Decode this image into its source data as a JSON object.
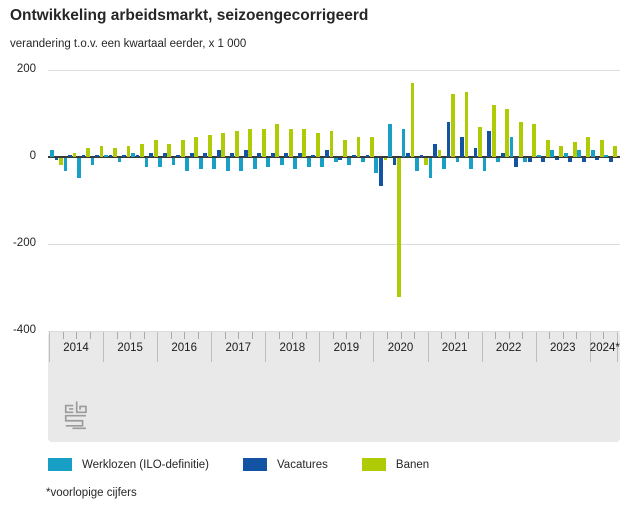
{
  "title": "Ontwikkeling arbeidsmarkt, seizoengecorrigeerd",
  "subtitle": "verandering t.o.v. een kwartaal eerder, x 1 000",
  "footnote": "*voorlopige cijfers",
  "colors": {
    "werklozen": "#189fc6",
    "vacatures": "#1353a4",
    "banen": "#afcb05",
    "zero_line": "#3a3a3a",
    "gridline": "#dcdcdc",
    "axis_band": "#e9e9e9",
    "text": "#262626"
  },
  "chart_data": {
    "type": "bar",
    "title": "Ontwikkeling arbeidsmarkt, seizoengecorrigeerd",
    "subtitle": "verandering t.o.v. een kwartaal eerder, x 1 000",
    "xlabel": "",
    "ylabel": "verandering t.o.v. een kwartaal eerder, x 1 000",
    "ylim": [
      -400,
      200
    ],
    "yticks": [
      200,
      0,
      -200,
      -400
    ],
    "ytick_labels": [
      "200",
      "0",
      "-200",
      "-400"
    ],
    "grid": true,
    "legend_position": "bottom",
    "years": [
      "2014",
      "2015",
      "2016",
      "2017",
      "2018",
      "2019",
      "2020",
      "2021",
      "2022",
      "2023",
      "2024*"
    ],
    "quarters_per_year": [
      4,
      4,
      4,
      4,
      4,
      4,
      4,
      4,
      4,
      4,
      2
    ],
    "quarters": [
      "2014 Q1",
      "2014 Q2",
      "2014 Q3",
      "2014 Q4",
      "2015 Q1",
      "2015 Q2",
      "2015 Q3",
      "2015 Q4",
      "2016 Q1",
      "2016 Q2",
      "2016 Q3",
      "2016 Q4",
      "2017 Q1",
      "2017 Q2",
      "2017 Q3",
      "2017 Q4",
      "2018 Q1",
      "2018 Q2",
      "2018 Q3",
      "2018 Q4",
      "2019 Q1",
      "2019 Q2",
      "2019 Q3",
      "2019 Q4",
      "2020 Q1",
      "2020 Q2",
      "2020 Q3",
      "2020 Q4",
      "2021 Q1",
      "2021 Q2",
      "2021 Q3",
      "2021 Q4",
      "2022 Q1",
      "2022 Q2",
      "2022 Q3",
      "2022 Q4",
      "2023 Q1",
      "2023 Q2",
      "2023 Q3",
      "2023 Q4",
      "2024 Q1",
      "2024 Q2"
    ],
    "series": [
      {
        "key": "werklozen",
        "name": "Werklozen (ILO-definitie)",
        "color": "#189fc6",
        "values": [
          15,
          -30,
          -45,
          -15,
          5,
          -10,
          10,
          -20,
          -20,
          -15,
          -30,
          -25,
          -25,
          -30,
          -30,
          -25,
          -20,
          -15,
          -25,
          -20,
          -20,
          -10,
          -15,
          -10,
          -35,
          75,
          65,
          -30,
          -45,
          -25,
          -10,
          -25,
          -30,
          -10,
          45,
          -10,
          5,
          15,
          10,
          15,
          15,
          5
        ]
      },
      {
        "key": "vacatures",
        "name": "Vacatures",
        "color": "#1353a4",
        "values": [
          -5,
          5,
          5,
          5,
          5,
          5,
          5,
          10,
          10,
          5,
          10,
          10,
          15,
          10,
          15,
          10,
          10,
          10,
          10,
          5,
          15,
          -5,
          5,
          5,
          -65,
          -15,
          10,
          5,
          30,
          80,
          45,
          20,
          60,
          10,
          -20,
          -10,
          -10,
          -5,
          -10,
          -10,
          -5,
          -10
        ]
      },
      {
        "key": "banen",
        "name": "Banen",
        "color": "#afcb05",
        "values": [
          -15,
          10,
          20,
          25,
          20,
          25,
          30,
          40,
          30,
          40,
          45,
          50,
          55,
          60,
          65,
          65,
          75,
          65,
          65,
          55,
          60,
          40,
          45,
          45,
          -5,
          -320,
          170,
          -15,
          15,
          145,
          150,
          70,
          120,
          110,
          80,
          75,
          40,
          25,
          35,
          45,
          40,
          25
        ]
      }
    ]
  }
}
